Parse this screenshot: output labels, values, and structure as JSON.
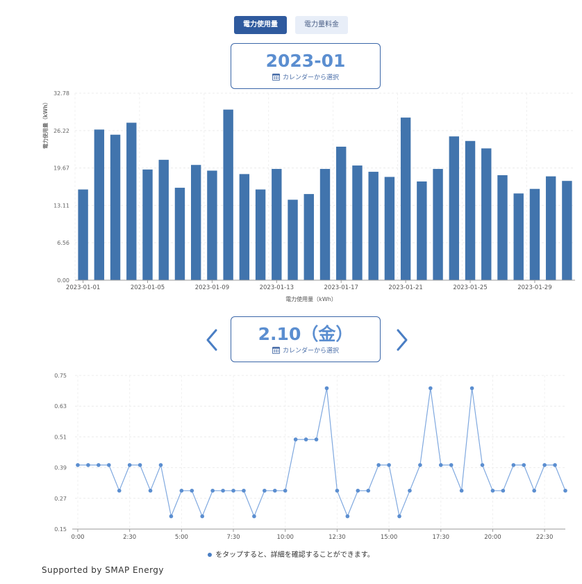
{
  "tabs": [
    {
      "label": "電力使用量",
      "active": true
    },
    {
      "label": "電力量料金",
      "active": false
    }
  ],
  "month_picker": {
    "value": "2023-01",
    "calendar_label": "カレンダーから選択"
  },
  "day_picker": {
    "value": "2.10（金）",
    "calendar_label": "カレンダーから選択"
  },
  "hint": {
    "text": "をタップすると、詳細を確認することができます。"
  },
  "footer": {
    "text": "Supported by SMAP Energy"
  },
  "colors": {
    "accent": "#2f5a9e",
    "bar": "#4174ad",
    "line": "#7fa8df",
    "point": "#5b8ed0"
  },
  "chart_data": [
    {
      "type": "bar",
      "ylabel": "電力使用量（kWh）",
      "xlabel": "電力使用量（kWh）",
      "yticks": [
        "0.00",
        "6.56",
        "13.11",
        "19.67",
        "26.22",
        "32.78"
      ],
      "ylim": [
        0,
        32.78
      ],
      "xtick_labels": [
        "2023-01-01",
        "2023-01-05",
        "2023-01-09",
        "2023-01-13",
        "2023-01-17",
        "2023-01-21",
        "2023-01-25",
        "2023-01-29"
      ],
      "categories": [
        "2023-01-01",
        "2023-01-02",
        "2023-01-03",
        "2023-01-04",
        "2023-01-05",
        "2023-01-06",
        "2023-01-07",
        "2023-01-08",
        "2023-01-09",
        "2023-01-10",
        "2023-01-11",
        "2023-01-12",
        "2023-01-13",
        "2023-01-14",
        "2023-01-15",
        "2023-01-16",
        "2023-01-17",
        "2023-01-18",
        "2023-01-19",
        "2023-01-20",
        "2023-01-21",
        "2023-01-22",
        "2023-01-23",
        "2023-01-24",
        "2023-01-25",
        "2023-01-26",
        "2023-01-27",
        "2023-01-28",
        "2023-01-29",
        "2023-01-30",
        "2023-01-31"
      ],
      "values": [
        15.9,
        26.4,
        25.5,
        27.6,
        19.4,
        21.1,
        16.2,
        20.2,
        19.2,
        29.9,
        18.6,
        15.9,
        19.5,
        14.1,
        15.1,
        19.5,
        23.4,
        20.1,
        19.0,
        18.1,
        28.5,
        17.3,
        19.5,
        25.2,
        24.4,
        23.1,
        18.4,
        15.2,
        16.0,
        18.2,
        17.4
      ],
      "grid": true
    },
    {
      "type": "line",
      "yticks": [
        "0.15",
        "0.27",
        "0.39",
        "0.51",
        "0.63",
        "0.75"
      ],
      "ylim": [
        0.15,
        0.75
      ],
      "xtick_labels": [
        "0:00",
        "2:30",
        "5:00",
        "7:30",
        "10:00",
        "12:30",
        "15:00",
        "17:30",
        "20:00",
        "22:30"
      ],
      "x_interval_minutes": 30,
      "values": [
        0.4,
        0.4,
        0.4,
        0.4,
        0.3,
        0.4,
        0.4,
        0.3,
        0.4,
        0.2,
        0.3,
        0.3,
        0.2,
        0.3,
        0.3,
        0.3,
        0.3,
        0.2,
        0.3,
        0.3,
        0.3,
        0.5,
        0.5,
        0.5,
        0.7,
        0.3,
        0.2,
        0.3,
        0.3,
        0.4,
        0.4,
        0.2,
        0.3,
        0.4,
        0.7,
        0.4,
        0.4,
        0.3,
        0.7,
        0.4,
        0.3,
        0.3,
        0.4,
        0.4,
        0.3,
        0.4,
        0.4,
        0.3
      ],
      "grid": true
    }
  ]
}
